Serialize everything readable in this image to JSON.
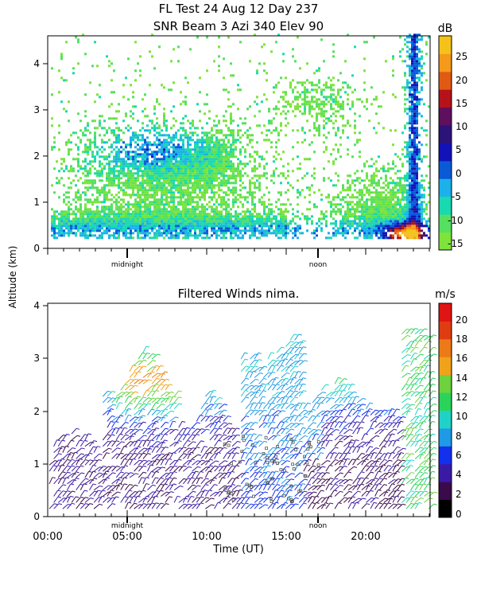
{
  "header": {
    "title_line1": "FL Test  24 Aug 12 Day 237",
    "title_line2": "SNR Beam 3 Azi 340 Elev 90"
  },
  "y_axis_label": "Altitude (km)",
  "chart_data": [
    {
      "type": "heatmap",
      "title": "SNR Beam 3 Azi 340 Elev 90",
      "xlabel": "",
      "ylabel": "Altitude (km)",
      "ylim": [
        0,
        4.6
      ],
      "y_ticks": [
        "0",
        "1",
        "2",
        "3",
        "4"
      ],
      "x_markers": [
        "midnight",
        "noon"
      ],
      "colorbar": {
        "unit": "dB",
        "ticks": [
          "25",
          "20",
          "15",
          "10",
          "5",
          "0",
          "-5",
          "-10",
          "-15"
        ],
        "range": [
          -15,
          30
        ]
      }
    },
    {
      "type": "scatter",
      "title": "Filtered Winds nima.",
      "xlabel": "Time (UT)",
      "ylabel": "Altitude (km)",
      "xlim": [
        0,
        24
      ],
      "ylim": [
        0,
        4.1
      ],
      "x_ticks": [
        "00:00",
        "05:00",
        "10:00",
        "15:00",
        "20:00"
      ],
      "y_ticks": [
        "0",
        "1",
        "2",
        "3",
        "4"
      ],
      "x_markers": [
        "midnight",
        "noon"
      ],
      "colorbar": {
        "unit": "m/s",
        "ticks": [
          "20",
          "18",
          "16",
          "14",
          "12",
          "10",
          "8",
          "6",
          "4",
          "2",
          "0"
        ],
        "range": [
          0,
          22
        ]
      }
    }
  ],
  "colors": {
    "snr_scale": [
      "#7ee33a",
      "#55e060",
      "#19d9b0",
      "#1cb1ea",
      "#0a5ad8",
      "#1212b8",
      "#2c137a",
      "#5e0f5e",
      "#b5121a",
      "#e05a14",
      "#f59a1a",
      "#f5c21a"
    ],
    "wind_scale": [
      "#000000",
      "#3a0a4a",
      "#3a1aa5",
      "#1230ee",
      "#1f9ae6",
      "#20d2c6",
      "#2ad45a",
      "#6cd23e",
      "#f0a21a",
      "#ec7a16",
      "#e03c12",
      "#e01414"
    ]
  }
}
